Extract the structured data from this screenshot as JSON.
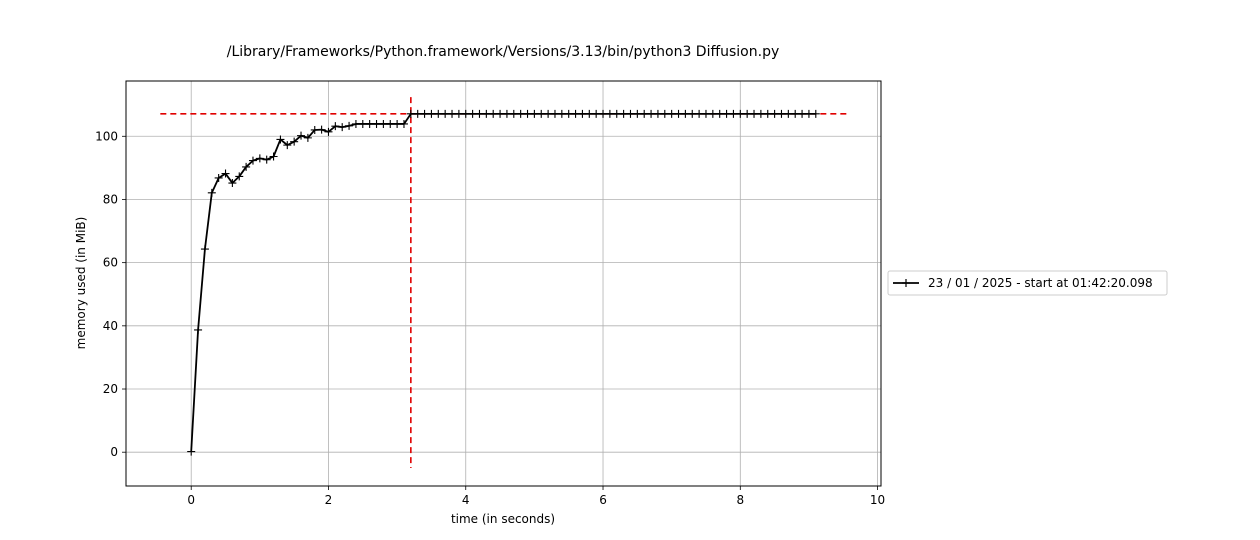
{
  "chart_data": {
    "type": "line",
    "title": "/Library/Frameworks/Python.framework/Versions/3.13/bin/python3 Diffusion.py",
    "xlabel": "time (in seconds)",
    "ylabel": "memory used (in MiB)",
    "xlim": [
      -0.95,
      10.05
    ],
    "ylim": [
      -10.7,
      117.5
    ],
    "xticks": [
      0,
      2,
      4,
      6,
      8,
      10
    ],
    "yticks": [
      0,
      20,
      40,
      60,
      80,
      100
    ],
    "grid": true,
    "legend_position": "outside-right",
    "series": [
      {
        "name": "23 / 01 / 2025 - start at 01:42:20.098",
        "color": "#000000",
        "marker": "+",
        "x": [
          0.0,
          0.1,
          0.2,
          0.3,
          0.4,
          0.5,
          0.6,
          0.7,
          0.8,
          0.9,
          1.0,
          1.1,
          1.2,
          1.3,
          1.4,
          1.5,
          1.6,
          1.7,
          1.8,
          1.9,
          2.0,
          2.1,
          2.2,
          2.3,
          2.4,
          2.5,
          2.6,
          2.7,
          2.8,
          2.9,
          3.0,
          3.1,
          3.2,
          3.3,
          3.4,
          3.5,
          3.6,
          3.7,
          3.8,
          3.9,
          4.0,
          4.1,
          4.2,
          4.3,
          4.4,
          4.5,
          4.6,
          4.7,
          4.8,
          4.9,
          5.0,
          5.1,
          5.2,
          5.3,
          5.4,
          5.5,
          5.6,
          5.7,
          5.8,
          5.9,
          6.0,
          6.1,
          6.2,
          6.3,
          6.4,
          6.5,
          6.6,
          6.7,
          6.8,
          6.9,
          7.0,
          7.1,
          7.2,
          7.3,
          7.4,
          7.5,
          7.6,
          7.7,
          7.8,
          7.9,
          8.0,
          8.1,
          8.2,
          8.3,
          8.4,
          8.5,
          8.6,
          8.7,
          8.8,
          8.9,
          9.0,
          9.1
        ],
        "y": [
          0.2,
          38.7,
          64.3,
          82.1,
          86.8,
          88.2,
          85.2,
          87.3,
          90.3,
          92.3,
          93.0,
          92.6,
          93.6,
          99.0,
          97.2,
          98.3,
          100.2,
          99.5,
          102.0,
          102.1,
          101.4,
          103.2,
          102.9,
          103.3,
          103.9,
          103.9,
          103.9,
          103.9,
          103.9,
          103.9,
          103.9,
          103.9,
          107.1,
          107.1,
          107.1,
          107.1,
          107.1,
          107.1,
          107.1,
          107.1,
          107.1,
          107.1,
          107.1,
          107.1,
          107.1,
          107.1,
          107.1,
          107.1,
          107.1,
          107.1,
          107.1,
          107.1,
          107.1,
          107.1,
          107.1,
          107.1,
          107.1,
          107.1,
          107.1,
          107.1,
          107.1,
          107.1,
          107.1,
          107.1,
          107.1,
          107.1,
          107.1,
          107.1,
          107.1,
          107.1,
          107.1,
          107.1,
          107.1,
          107.1,
          107.1,
          107.1,
          107.1,
          107.1,
          107.1,
          107.1,
          107.1,
          107.1,
          107.1,
          107.1,
          107.1,
          107.1,
          107.1,
          107.1,
          107.1,
          107.1,
          107.1,
          107.1
        ]
      }
    ],
    "reference_lines": {
      "color": "#e00000",
      "style": "dashed",
      "horizontal": {
        "y": 107.1,
        "x_from": -0.45,
        "x_to": 9.55
      },
      "vertical": {
        "x": 3.2,
        "y_from": -5.0,
        "y_to": 112.4
      }
    }
  }
}
